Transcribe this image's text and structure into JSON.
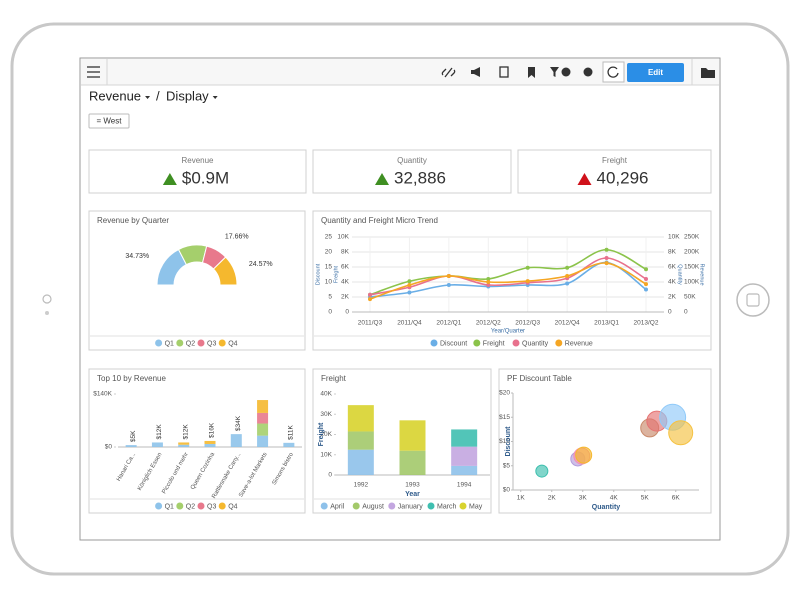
{
  "toolbar": {
    "edit_button": "Edit"
  },
  "breadcrumb": {
    "items": [
      "Revenue",
      "Display"
    ],
    "separator": "/"
  },
  "filter": "= West",
  "kpis": [
    {
      "label": "Revenue",
      "value": "$0.9M",
      "trend": "up",
      "color": "#3f8f22"
    },
    {
      "label": "Quantity",
      "value": "32,886",
      "trend": "up",
      "color": "#3f8f22"
    },
    {
      "label": "Freight",
      "value": "40,296",
      "trend": "up",
      "color": "#d0121b"
    }
  ],
  "chart_data": [
    {
      "type": "pie",
      "half": true,
      "title": "Revenue by Quarter",
      "categories": [
        "Q1",
        "Q2",
        "Q3",
        "Q4"
      ],
      "values": [
        34.73,
        23.04,
        17.66,
        24.57
      ],
      "value_labels": [
        "34.73%",
        null,
        "17.66%",
        "24.57%"
      ],
      "colors": [
        "#8ec3ea",
        "#a5cf6c",
        "#e8798c",
        "#f5b82e"
      ],
      "legend": "bottom"
    },
    {
      "type": "line",
      "title": "Quantity and Freight Micro Trend",
      "xlabel": "Year/Quarter",
      "grid": true,
      "legend": "bottom",
      "categories": [
        "2011/Q3",
        "2011/Q4",
        "2012/Q1",
        "2012/Q2",
        "2012/Q3",
        "2012/Q4",
        "2013/Q1",
        "2013/Q2"
      ],
      "axes": [
        {
          "label": "Discount",
          "side": "left",
          "lim": [
            0,
            25
          ],
          "ticks": [
            0,
            5,
            10,
            15,
            20,
            25
          ]
        },
        {
          "label": "Freight",
          "side": "left",
          "lim": [
            0,
            10000
          ],
          "ticks": [
            0,
            {
              "value": 2000,
              "label": "2K"
            },
            {
              "value": 4000,
              "label": "4K"
            },
            {
              "value": 6000,
              "label": "6K"
            },
            {
              "value": 8000,
              "label": "8K"
            },
            {
              "value": 10000,
              "label": "10K"
            }
          ]
        },
        {
          "label": "Quantity",
          "side": "right",
          "lim": [
            0,
            10000
          ],
          "ticks": [
            0,
            {
              "value": 2000,
              "label": "2K"
            },
            {
              "value": 4000,
              "label": "4K"
            },
            {
              "value": 6000,
              "label": "6K"
            },
            {
              "value": 8000,
              "label": "8K"
            },
            {
              "value": 10000,
              "label": "10K"
            }
          ]
        },
        {
          "label": "Revenue",
          "side": "right",
          "lim": [
            0,
            250000
          ],
          "ticks": [
            0,
            {
              "value": 50000,
              "label": "50K"
            },
            {
              "value": 100000,
              "label": "100K"
            },
            {
              "value": 150000,
              "label": "150K"
            },
            {
              "value": 200000,
              "label": "200K"
            },
            {
              "value": 250000,
              "label": "250K"
            }
          ]
        }
      ],
      "series": [
        {
          "name": "Discount",
          "color": "#6aaee6",
          "axis": 0,
          "values": [
            5,
            6.5,
            9,
            8.5,
            9,
            9.5,
            16.5,
            7.5
          ]
        },
        {
          "name": "Freight",
          "color": "#8bc34a",
          "axis": 1,
          "values": [
            2300,
            4100,
            4800,
            4400,
            5900,
            5900,
            8300,
            5700
          ]
        },
        {
          "name": "Quantity",
          "color": "#e8718d",
          "axis": 2,
          "values": [
            2300,
            3300,
            4800,
            3600,
            3900,
            4500,
            7200,
            4400
          ]
        },
        {
          "name": "Revenue",
          "color": "#f5a623",
          "axis": 3,
          "values": [
            43000,
            90000,
            120000,
            100000,
            103000,
            120000,
            163000,
            93000
          ]
        }
      ]
    },
    {
      "type": "bar",
      "stacked": true,
      "title": "Top 10 by Revenue",
      "legend": "bottom",
      "categories": [
        "Hanari Ca...",
        "Königlich Essen",
        "Piccolo und mehr",
        "Queen Cozinha",
        "Rattlesnake Cany...",
        "Save-a-lot Markets",
        "Simons bistro"
      ],
      "ylim": [
        0,
        140000
      ],
      "yticks": [
        {
          "value": 0,
          "label": "$0"
        },
        {
          "value": 140000,
          "label": "$140K"
        }
      ],
      "bar_labels": [
        "$5K",
        "$12K",
        "$12K",
        "$16K",
        "$34K",
        null,
        "$11K"
      ],
      "series": [
        {
          "name": "Q1",
          "color": "#8ec3ea",
          "values": [
            5000,
            12000,
            6000,
            8000,
            34000,
            30000,
            11000
          ]
        },
        {
          "name": "Q2",
          "color": "#a5cf6c",
          "values": [
            0,
            0,
            0,
            0,
            0,
            32000,
            0
          ]
        },
        {
          "name": "Q3",
          "color": "#e8798c",
          "values": [
            0,
            0,
            0,
            0,
            0,
            28000,
            0
          ]
        },
        {
          "name": "Q4",
          "color": "#f5b82e",
          "values": [
            0,
            0,
            6000,
            8000,
            0,
            34000,
            0
          ]
        }
      ]
    },
    {
      "type": "bar",
      "stacked": true,
      "title": "Freight",
      "xlabel": "Year",
      "ylabel": "Freight",
      "legend": "bottom",
      "categories": [
        "1992",
        "1993",
        "1994"
      ],
      "ylim": [
        0,
        40000
      ],
      "yticks": [
        0,
        {
          "value": 10000,
          "label": "10K"
        },
        {
          "value": 20000,
          "label": "20K"
        },
        {
          "value": 30000,
          "label": "30K"
        },
        {
          "value": 40000,
          "label": "40K"
        }
      ],
      "series": [
        {
          "name": "April",
          "color": "#8ec1ea",
          "values": [
            12500,
            0,
            4500
          ]
        },
        {
          "name": "August",
          "color": "#a3c96a",
          "values": [
            9000,
            12000,
            0
          ]
        },
        {
          "name": "January",
          "color": "#c3a6e0",
          "values": [
            0,
            0,
            9500
          ]
        },
        {
          "name": "March",
          "color": "#3fbfb0",
          "values": [
            0,
            0,
            8500
          ]
        },
        {
          "name": "May",
          "color": "#d8d32e",
          "values": [
            13000,
            15000,
            0
          ]
        }
      ]
    },
    {
      "type": "scatter",
      "title": "PF Discount Table",
      "xlabel": "Quantity",
      "ylabel": "Discount",
      "xlim": [
        750,
        6750
      ],
      "xticks": [
        {
          "value": 1000,
          "label": "1K"
        },
        {
          "value": 2000,
          "label": "2K"
        },
        {
          "value": 3000,
          "label": "3K"
        },
        {
          "value": 4000,
          "label": "4K"
        },
        {
          "value": 5000,
          "label": "5K"
        },
        {
          "value": 6000,
          "label": "6K"
        }
      ],
      "ylim": [
        0,
        20
      ],
      "yticks": [
        {
          "value": 0,
          "label": "$0"
        },
        {
          "value": 5,
          "label": "$5"
        },
        {
          "value": 10,
          "label": "$10"
        },
        {
          "value": 15,
          "label": "$15"
        },
        {
          "value": 20,
          "label": "$20"
        }
      ],
      "x": [
        1680,
        2840,
        2970,
        3030,
        5160,
        5390,
        5900,
        6160
      ],
      "y": [
        3.9,
        6.4,
        7.0,
        7.2,
        12.8,
        14.2,
        15.0,
        11.8
      ],
      "sizes": [
        36,
        49,
        64,
        64,
        81,
        100,
        169,
        144
      ],
      "colors": [
        "#3cbfae",
        "#b39ddb",
        "#f48fb1",
        "#f5b82e",
        "#c98a6b",
        "#e57373",
        "#90caf9",
        "#f5c242"
      ]
    }
  ]
}
